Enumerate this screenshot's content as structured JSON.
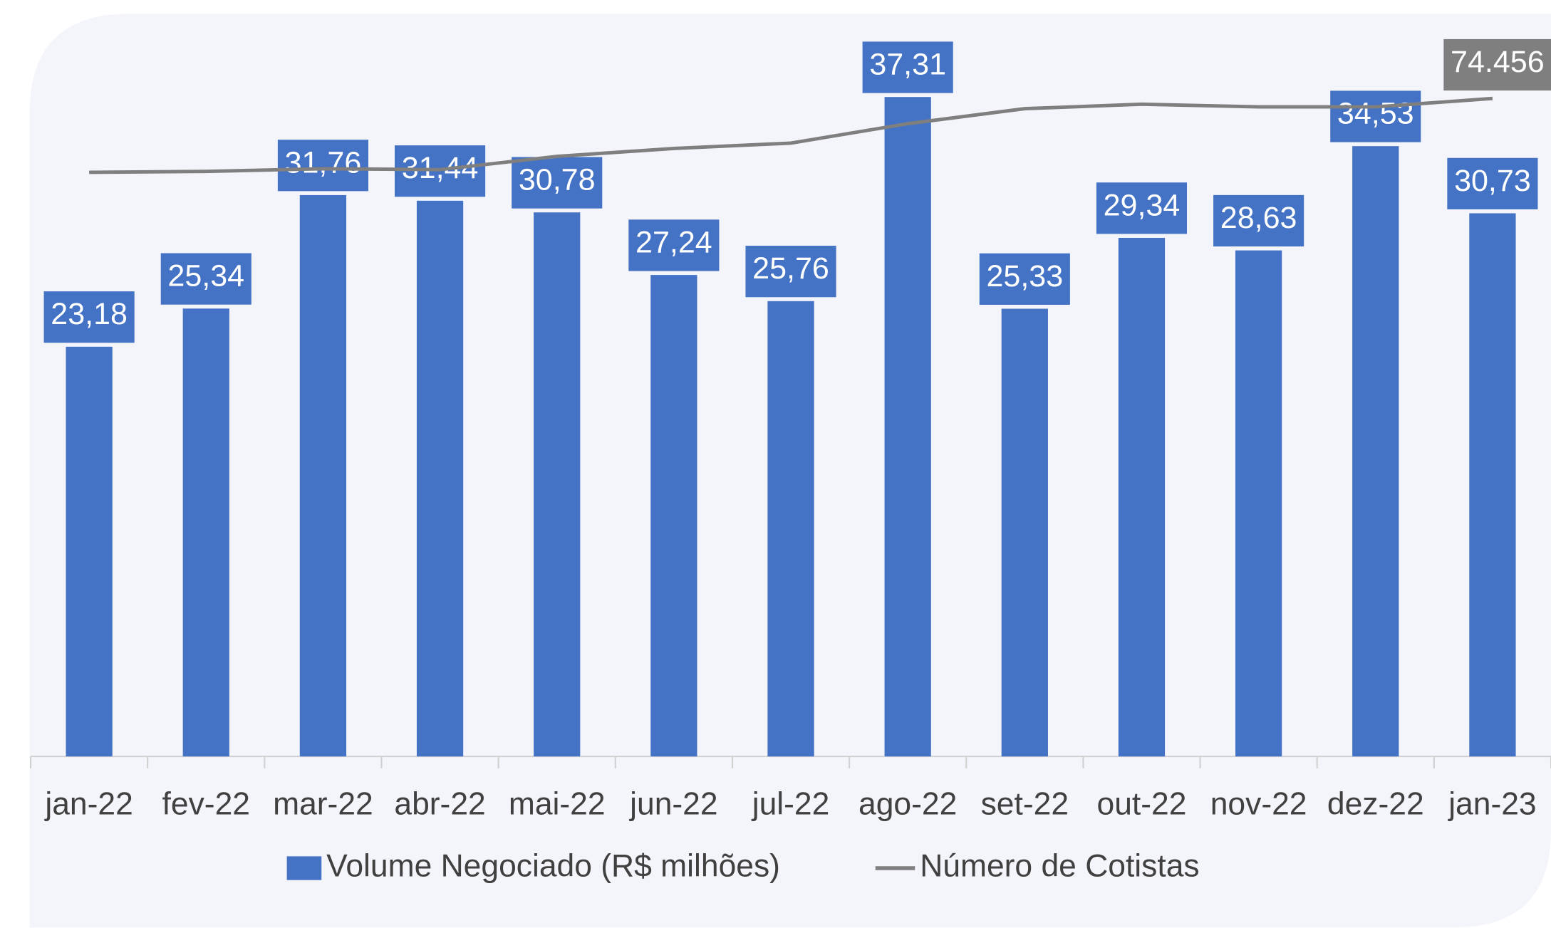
{
  "chart_data": {
    "type": "bar",
    "categories": [
      "jan-22",
      "fev-22",
      "mar-22",
      "abr-22",
      "mai-22",
      "jun-22",
      "jul-22",
      "ago-22",
      "set-22",
      "out-22",
      "nov-22",
      "dez-22",
      "jan-23"
    ],
    "series": [
      {
        "name": "Volume Negociado (R$ milhões)",
        "color": "#4472c4",
        "type": "bar",
        "values": [
          23.18,
          25.34,
          31.76,
          31.44,
          30.78,
          27.24,
          25.76,
          37.31,
          25.33,
          29.34,
          28.63,
          34.53,
          30.73
        ],
        "value_labels": [
          "23,18",
          "25,34",
          "31,76",
          "31,44",
          "30,78",
          "27,24",
          "25,76",
          "37,31",
          "25,33",
          "29,34",
          "28,63",
          "34,53",
          "30,73"
        ]
      },
      {
        "name": "Número de Cotistas",
        "color": "#7f7f7f",
        "type": "line",
        "axis": "y2",
        "values": [
          66100,
          66200,
          66500,
          66400,
          67900,
          68800,
          69400,
          71600,
          73300,
          73800,
          73500,
          73500,
          74456
        ],
        "value_labels": [
          null,
          null,
          null,
          null,
          null,
          null,
          null,
          null,
          null,
          null,
          null,
          null,
          "74.456"
        ]
      }
    ],
    "ylim": [
      0,
      40
    ],
    "y2lim": [
      0,
      80000
    ],
    "legend": "bottom"
  }
}
